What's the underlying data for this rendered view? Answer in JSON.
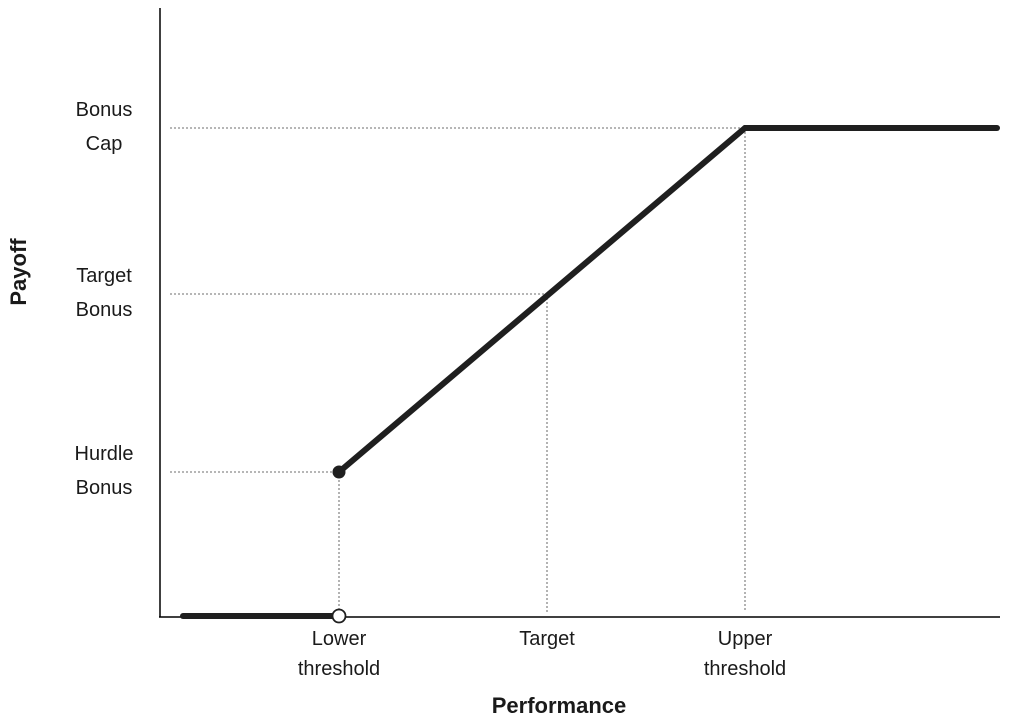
{
  "chart_data": {
    "type": "line",
    "xlabel": "Performance",
    "ylabel": "Payoff",
    "x_ticks": [
      {
        "id": "lower",
        "lines": [
          "Lower",
          "threshold"
        ]
      },
      {
        "id": "target",
        "lines": [
          "Target"
        ]
      },
      {
        "id": "upper",
        "lines": [
          "Upper",
          "threshold"
        ]
      }
    ],
    "y_ticks": [
      {
        "id": "cap",
        "lines": [
          "Bonus",
          "Cap"
        ]
      },
      {
        "id": "target_bonus",
        "lines": [
          "Target",
          "Bonus"
        ]
      },
      {
        "id": "hurdle",
        "lines": [
          "Hurdle",
          "Bonus"
        ]
      }
    ],
    "segments": [
      {
        "name": "below-threshold",
        "from": [
          "start",
          "zero"
        ],
        "to": [
          "lower",
          "zero"
        ],
        "end_marker": "open"
      },
      {
        "name": "incentive-range",
        "from": [
          "lower",
          "hurdle"
        ],
        "to": [
          "upper",
          "cap"
        ],
        "start_marker": "filled"
      },
      {
        "name": "capped",
        "from": [
          "upper",
          "cap"
        ],
        "to": [
          "end",
          "cap"
        ]
      }
    ],
    "guides": [
      {
        "x": "lower",
        "y": "hurdle"
      },
      {
        "x": "target",
        "y": "target_bonus"
      },
      {
        "x": "upper",
        "y": "cap"
      }
    ],
    "grid": false,
    "legend": false
  }
}
